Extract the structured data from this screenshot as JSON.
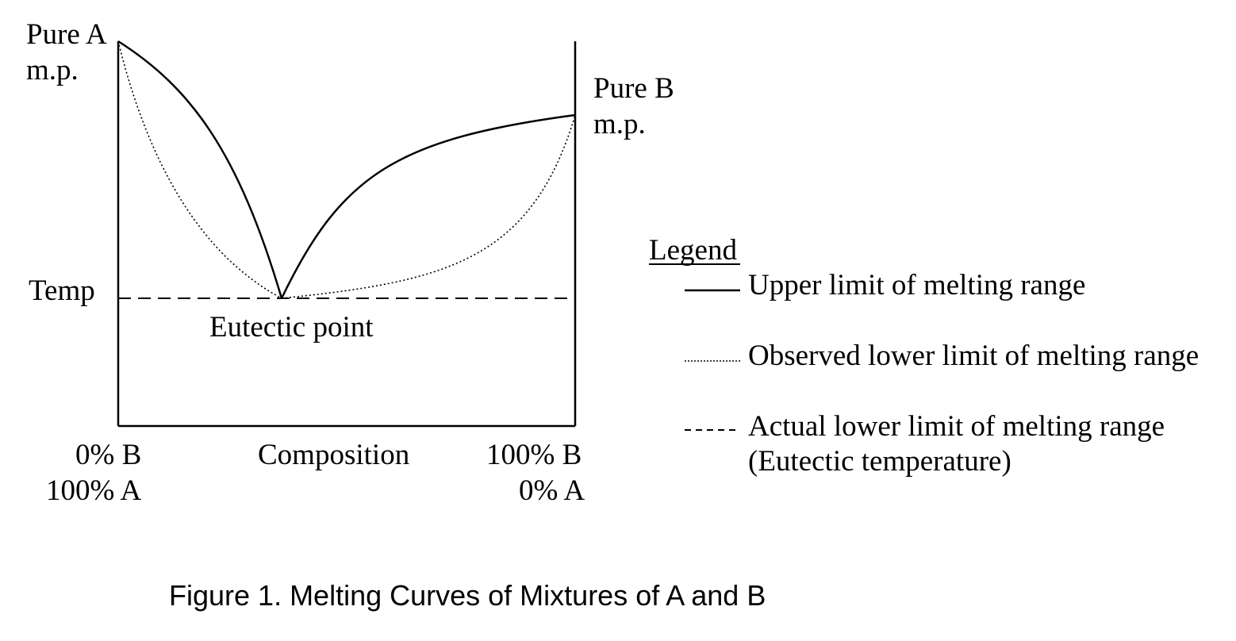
{
  "figure": {
    "caption": "Figure 1.  Melting Curves of Mixtures of A and B",
    "labels": {
      "pure_a_line1": "Pure A",
      "pure_a_line2": "m.p.",
      "pure_b_line1": "Pure B",
      "pure_b_line2": "m.p.",
      "temp": "Temp",
      "eutectic_point": "Eutectic point",
      "x_left_line1": "0% B",
      "x_left_line2": "100% A",
      "x_center": "Composition",
      "x_right_line1": "100% B",
      "x_right_line2": "0% A"
    },
    "legend": {
      "title": "Legend",
      "items": [
        {
          "style": "solid",
          "label": "Upper limit of melting range"
        },
        {
          "style": "dotted",
          "label": "Observed lower limit of melting range"
        },
        {
          "style": "dashed",
          "label": "Actual lower limit of melting range",
          "label2": "(Eutectic temperature)"
        }
      ]
    },
    "colors": {
      "line": "#000000",
      "background": "#ffffff"
    }
  }
}
